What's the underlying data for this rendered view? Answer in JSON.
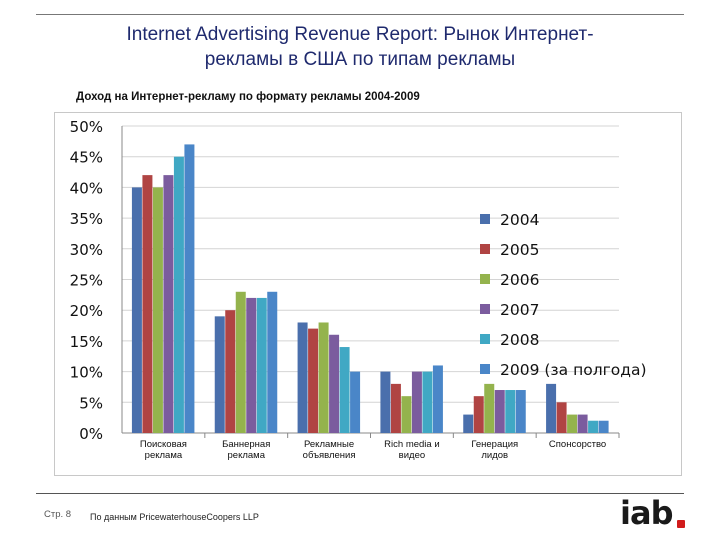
{
  "header": {
    "title_line1": "Internet Advertising Revenue Report: Рынок Интернет-",
    "title_line2": "рекламы в США по типам рекламы"
  },
  "chart_subtitle": "Доход на Интернет-рекламу по формату рекламы 2004-2009",
  "footer": {
    "page": "Стр. 8",
    "source": "По данным PricewaterhouseCoopers LLP",
    "logo": "iab"
  },
  "colors": {
    "s2004": "#4a6fac",
    "s2005": "#b04443",
    "s2006": "#94b34d",
    "s2007": "#7b5c9e",
    "s2008": "#40a8c4",
    "s2009": "#4a86c8",
    "grid": "#d4d4d4",
    "axis": "#888888"
  },
  "chart_data": {
    "type": "bar",
    "title": "Доход на Интернет-рекламу по формату рекламы 2004-2009",
    "categories": [
      [
        "Поисковая",
        "реклама"
      ],
      [
        "Баннерная",
        "реклама"
      ],
      [
        "Рекламные",
        "объявления"
      ],
      [
        "Rich media и",
        "видео"
      ],
      [
        "Генерация",
        "лидов"
      ],
      [
        "Спонсорство"
      ]
    ],
    "series": [
      {
        "name": "2004",
        "values": [
          40,
          19,
          18,
          10,
          3,
          8
        ]
      },
      {
        "name": "2005",
        "values": [
          42,
          20,
          17,
          8,
          6,
          5
        ]
      },
      {
        "name": "2006",
        "values": [
          40,
          23,
          18,
          6,
          8,
          3
        ]
      },
      {
        "name": "2007",
        "values": [
          42,
          22,
          16,
          10,
          7,
          3
        ]
      },
      {
        "name": "2008",
        "values": [
          45,
          22,
          14,
          10,
          7,
          2
        ]
      },
      {
        "name": "2009 (за полгода)",
        "values": [
          47,
          23,
          10,
          11,
          7,
          2
        ]
      }
    ],
    "yticks": [
      "0%",
      "5%",
      "10%",
      "15%",
      "20%",
      "25%",
      "30%",
      "35%",
      "40%",
      "45%",
      "50%"
    ],
    "ylim": [
      0,
      50
    ],
    "grid": true,
    "legend_position": "right"
  }
}
